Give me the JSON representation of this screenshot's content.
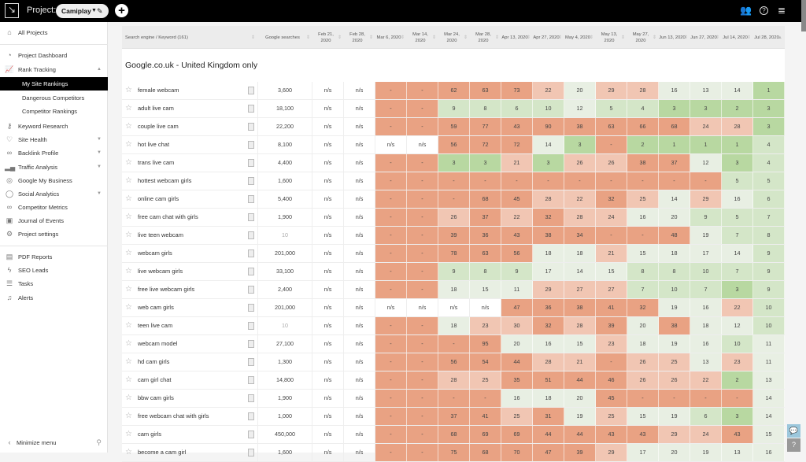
{
  "topbar": {
    "project_label": "Project:",
    "project_name": "Camiplay",
    "icons": [
      "logo-icon",
      "edit-icon",
      "add-icon",
      "users-icon",
      "help-icon",
      "notifications-icon"
    ]
  },
  "sidebar": {
    "items": [
      {
        "label": "All Projects",
        "icon": "home-icon"
      },
      {
        "label": "Project Dashboard",
        "icon": "dashboard-icon"
      },
      {
        "label": "Rank Tracking",
        "icon": "chart-icon",
        "expanded": true
      },
      {
        "label": "My Site Rankings",
        "sub": true,
        "active": true
      },
      {
        "label": "Dangerous Competitors",
        "sub": true
      },
      {
        "label": "Competitor Rankings",
        "sub": true
      },
      {
        "label": "Keyword Research",
        "icon": "key-icon"
      },
      {
        "label": "Site Health",
        "icon": "heart-icon",
        "chevron": true
      },
      {
        "label": "Backlink Profile",
        "icon": "link-icon",
        "chevron": true
      },
      {
        "label": "Traffic Analysis",
        "icon": "bars-icon",
        "chevron": true
      },
      {
        "label": "Google My Business",
        "icon": "pin-icon"
      },
      {
        "label": "Social Analytics",
        "icon": "speech-icon",
        "chevron": true
      },
      {
        "label": "Competitor Metrics",
        "icon": "binoculars-icon"
      },
      {
        "label": "Journal of Events",
        "icon": "calendar-icon"
      },
      {
        "label": "Project settings",
        "icon": "gear-icon"
      },
      {
        "label": "PDF Reports",
        "icon": "pdf-icon"
      },
      {
        "label": "SEO Leads",
        "icon": "bolt-icon"
      },
      {
        "label": "Tasks",
        "icon": "tasks-icon"
      },
      {
        "label": "Alerts",
        "icon": "bell-icon"
      }
    ],
    "minimize": "Minimize menu"
  },
  "table": {
    "headers": {
      "keyword": "Search engine / Keyword (161)",
      "searches": "Google searches",
      "dates": [
        "Feb 21, 2020",
        "Feb 28, 2020",
        "Mar 6, 2020",
        "Mar 14, 2020",
        "Mar 24, 2020",
        "Mar 28, 2020",
        "Apr 13, 2020",
        "Apr 27, 2020",
        "May 4, 2020",
        "May 13, 2020",
        "May 27, 2020",
        "Jun 13, 2020",
        "Jun 27, 2020",
        "Jul 14, 2020",
        "Jul 28, 2020"
      ]
    },
    "section": "Google.co.uk - United Kingdom only",
    "colors": {
      "poor": "#e9a283",
      "mid": "#f1c6b3",
      "fair": "#e8efe3",
      "good": "#d4e6c8",
      "top": "#b8d8a1"
    },
    "rows": [
      {
        "kw": "female webcam",
        "s": "3,600",
        "feb": [
          "n/s",
          "n/s"
        ],
        "r": [
          "-",
          "-",
          "62",
          "63",
          "73",
          "22",
          "20",
          "29",
          "28",
          "16",
          "13",
          "14",
          "1"
        ]
      },
      {
        "kw": "adult live cam",
        "s": "18,100",
        "feb": [
          "n/s",
          "n/s"
        ],
        "r": [
          "-",
          "-",
          "9",
          "8",
          "6",
          "10",
          "12",
          "5",
          "4",
          "3",
          "3",
          "2",
          "3"
        ]
      },
      {
        "kw": "couple live cam",
        "s": "22,200",
        "feb": [
          "n/s",
          "n/s"
        ],
        "r": [
          "-",
          "-",
          "59",
          "77",
          "43",
          "90",
          "38",
          "63",
          "66",
          "68",
          "24",
          "28",
          "3"
        ]
      },
      {
        "kw": "hot live chat",
        "s": "8,100",
        "feb": [
          "n/s",
          "n/s"
        ],
        "r": [
          "n/s",
          "n/s",
          "56",
          "72",
          "72",
          "14",
          "3",
          "-",
          "2",
          "1",
          "1",
          "1",
          "4"
        ]
      },
      {
        "kw": "trans live cam",
        "s": "4,400",
        "feb": [
          "n/s",
          "n/s"
        ],
        "r": [
          "-",
          "-",
          "3",
          "3",
          "21",
          "3",
          "26",
          "26",
          "38",
          "37",
          "12",
          "3",
          "4"
        ]
      },
      {
        "kw": "hottest webcam girls",
        "s": "1,600",
        "feb": [
          "n/s",
          "n/s"
        ],
        "r": [
          "-",
          "-",
          "-",
          "-",
          "-",
          "-",
          "-",
          "-",
          "-",
          "-",
          "-",
          "5",
          "5"
        ]
      },
      {
        "kw": "online cam girls",
        "s": "5,400",
        "feb": [
          "n/s",
          "n/s"
        ],
        "r": [
          "-",
          "-",
          "-",
          "68",
          "45",
          "28",
          "22",
          "32",
          "25",
          "14",
          "29",
          "16",
          "6"
        ]
      },
      {
        "kw": "free cam chat with girls",
        "s": "1,900",
        "feb": [
          "n/s",
          "n/s"
        ],
        "r": [
          "-",
          "-",
          "26",
          "37",
          "22",
          "32",
          "28",
          "24",
          "16",
          "20",
          "9",
          "5",
          "7"
        ]
      },
      {
        "kw": "live teen webcam",
        "s": "10",
        "feb": [
          "n/s",
          "n/s"
        ],
        "r": [
          "-",
          "-",
          "39",
          "36",
          "43",
          "38",
          "34",
          "-",
          "-",
          "48",
          "19",
          "7",
          "8"
        ]
      },
      {
        "kw": "webcam girls",
        "s": "201,000",
        "feb": [
          "n/s",
          "n/s"
        ],
        "r": [
          "-",
          "-",
          "78",
          "63",
          "56",
          "18",
          "18",
          "21",
          "15",
          "18",
          "17",
          "14",
          "9"
        ]
      },
      {
        "kw": "live webcam girls",
        "s": "33,100",
        "feb": [
          "n/s",
          "n/s"
        ],
        "r": [
          "-",
          "-",
          "9",
          "8",
          "9",
          "17",
          "14",
          "15",
          "8",
          "8",
          "10",
          "7",
          "9"
        ]
      },
      {
        "kw": "free live webcam girls",
        "s": "2,400",
        "feb": [
          "n/s",
          "n/s"
        ],
        "r": [
          "-",
          "-",
          "18",
          "15",
          "11",
          "29",
          "27",
          "27",
          "7",
          "10",
          "7",
          "3",
          "9"
        ]
      },
      {
        "kw": "web cam girls",
        "s": "201,000",
        "feb": [
          "n/s",
          "n/s"
        ],
        "r": [
          "n/s",
          "n/s",
          "n/s",
          "n/s",
          "47",
          "36",
          "38",
          "41",
          "32",
          "19",
          "16",
          "22",
          "10"
        ]
      },
      {
        "kw": "teen live cam",
        "s": "10",
        "feb": [
          "n/s",
          "n/s"
        ],
        "r": [
          "-",
          "-",
          "18",
          "23",
          "30",
          "32",
          "28",
          "39",
          "20",
          "38",
          "18",
          "12",
          "10"
        ]
      },
      {
        "kw": "webcam model",
        "s": "27,100",
        "feb": [
          "n/s",
          "n/s"
        ],
        "r": [
          "-",
          "-",
          "-",
          "95",
          "20",
          "16",
          "15",
          "23",
          "18",
          "19",
          "16",
          "10",
          "11"
        ]
      },
      {
        "kw": "hd cam girls",
        "s": "1,300",
        "feb": [
          "n/s",
          "n/s"
        ],
        "r": [
          "-",
          "-",
          "56",
          "54",
          "44",
          "28",
          "21",
          "-",
          "26",
          "25",
          "13",
          "23",
          "11"
        ]
      },
      {
        "kw": "cam girl chat",
        "s": "14,800",
        "feb": [
          "n/s",
          "n/s"
        ],
        "r": [
          "-",
          "-",
          "28",
          "25",
          "35",
          "51",
          "44",
          "46",
          "26",
          "26",
          "22",
          "2",
          "13"
        ]
      },
      {
        "kw": "bbw cam girls",
        "s": "1,900",
        "feb": [
          "n/s",
          "n/s"
        ],
        "r": [
          "-",
          "-",
          "-",
          "-",
          "16",
          "18",
          "20",
          "45",
          "-",
          "-",
          "-",
          "-",
          "14"
        ]
      },
      {
        "kw": "free webcam chat with girls",
        "s": "1,000",
        "feb": [
          "n/s",
          "n/s"
        ],
        "r": [
          "-",
          "-",
          "37",
          "41",
          "25",
          "31",
          "19",
          "25",
          "15",
          "19",
          "6",
          "3",
          "14"
        ]
      },
      {
        "kw": "cam girls",
        "s": "450,000",
        "feb": [
          "n/s",
          "n/s"
        ],
        "r": [
          "-",
          "-",
          "68",
          "69",
          "69",
          "44",
          "44",
          "43",
          "43",
          "29",
          "24",
          "43",
          "15"
        ]
      },
      {
        "kw": "become a cam girl",
        "s": "1,600",
        "feb": [
          "n/s",
          "n/s"
        ],
        "r": [
          "-",
          "-",
          "75",
          "68",
          "70",
          "47",
          "39",
          "29",
          "17",
          "20",
          "19",
          "13",
          "16"
        ]
      }
    ]
  }
}
